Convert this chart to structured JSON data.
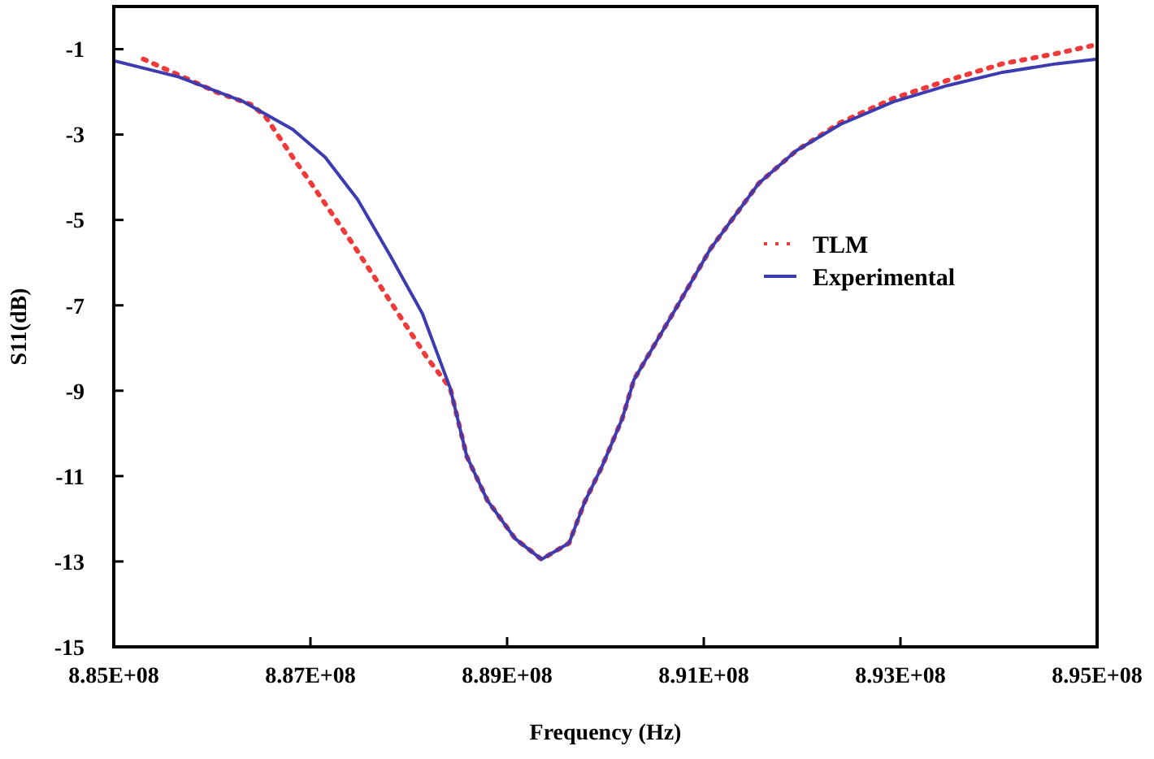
{
  "chart_data": {
    "type": "line",
    "xlabel": "Frequency (Hz)",
    "ylabel": "S11(dB)",
    "xlim": [
      885000000,
      895000000
    ],
    "xticks": [
      {
        "value": 885000000,
        "label": "8.85E+08"
      },
      {
        "value": 887000000,
        "label": "8.87E+08"
      },
      {
        "value": 889000000,
        "label": "8.89E+08"
      },
      {
        "value": 891000000,
        "label": "8.91E+08"
      },
      {
        "value": 893000000,
        "label": "8.93E+08"
      },
      {
        "value": 895000000,
        "label": "8.95E+08"
      }
    ],
    "ylim": [
      -15,
      0
    ],
    "yticks": [
      -15,
      -13,
      -11,
      -9,
      -7,
      -5,
      -3,
      -1
    ],
    "grid": false,
    "legend": "right",
    "marker": "none",
    "series": [
      {
        "name": "TLM",
        "color": "#f03a3a",
        "line_style": "dotted",
        "x": [
          885300000,
          886040000,
          886400000,
          886540000,
          886820000,
          887030000,
          887430000,
          887810000,
          888190000,
          888420000,
          888590000,
          888800000,
          889080000,
          889350000,
          889630000,
          889790000,
          889960000,
          890170000,
          890290000,
          890740000,
          891070000,
          891560000,
          891940000,
          892390000,
          892930000,
          893480000,
          894040000,
          894590000,
          895000000
        ],
        "values": [
          -1.23,
          -2.0,
          -2.3,
          -2.57,
          -3.53,
          -4.22,
          -5.56,
          -6.9,
          -8.24,
          -8.93,
          -10.54,
          -11.57,
          -12.46,
          -12.95,
          -12.57,
          -11.6,
          -10.8,
          -9.66,
          -8.74,
          -6.98,
          -5.67,
          -4.14,
          -3.38,
          -2.72,
          -2.15,
          -1.73,
          -1.34,
          -1.1,
          -0.89
        ]
      },
      {
        "name": "Experimental",
        "color": "#3c3cb0",
        "line_style": "solid",
        "x": [
          885000000,
          885660000,
          886320000,
          886820000,
          887150000,
          887480000,
          887810000,
          888140000,
          888420000,
          888590000,
          888800000,
          889080000,
          889350000,
          889630000,
          889790000,
          889960000,
          890170000,
          890290000,
          890740000,
          891070000,
          891560000,
          891940000,
          892390000,
          892930000,
          893480000,
          894040000,
          894590000,
          895000000
        ],
        "values": [
          -1.27,
          -1.65,
          -2.23,
          -2.88,
          -3.53,
          -4.52,
          -5.83,
          -7.2,
          -8.93,
          -10.54,
          -11.57,
          -12.46,
          -12.95,
          -12.57,
          -11.6,
          -10.8,
          -9.66,
          -8.74,
          -6.98,
          -5.67,
          -4.14,
          -3.38,
          -2.76,
          -2.23,
          -1.85,
          -1.54,
          -1.34,
          -1.23
        ]
      }
    ]
  }
}
